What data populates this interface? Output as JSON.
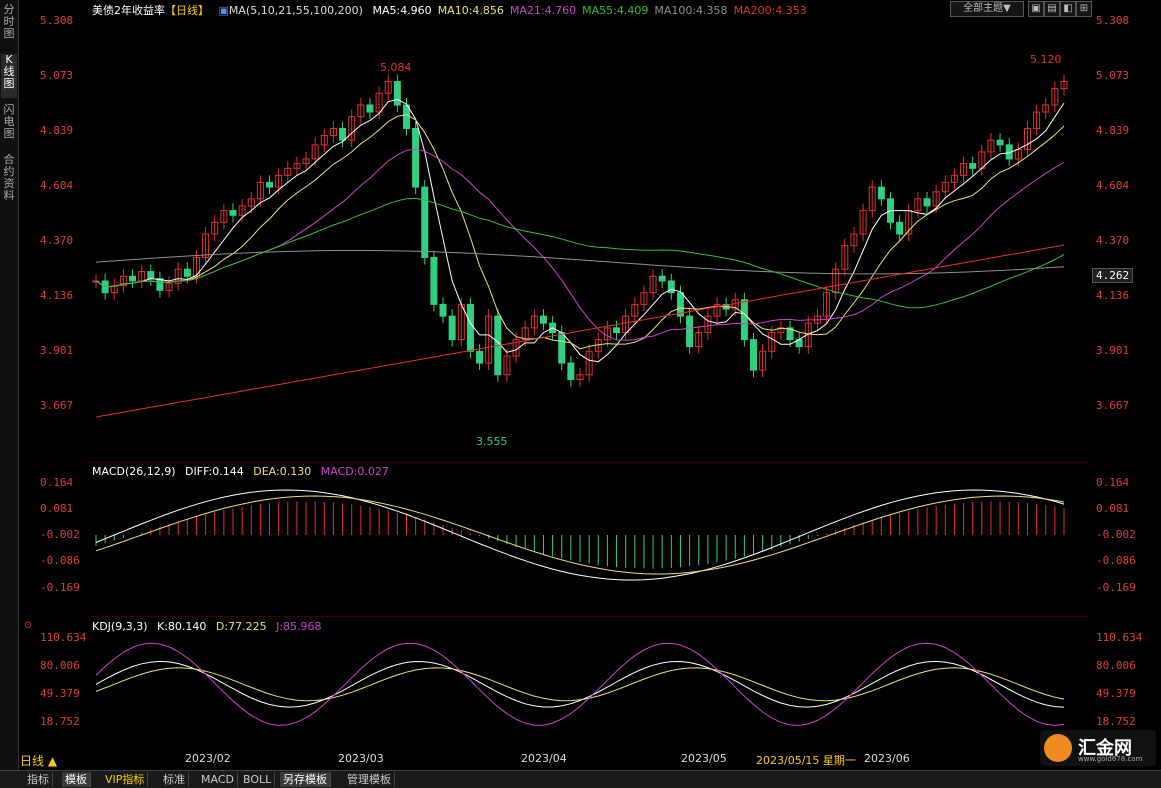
{
  "sidebar": {
    "tabs": [
      "分时图",
      "K线图",
      "闪电图",
      "合约资料"
    ]
  },
  "main_legend": {
    "title": "美债2年收益率",
    "period_tag": "【日线】",
    "ma_params": "MA(5,10,21,55,100,200)",
    "items": [
      {
        "text": "MA5:4.960",
        "color": "#ffffff"
      },
      {
        "text": "MA10:4.856",
        "color": "#f0e070"
      },
      {
        "text": "MA21:4.760",
        "color": "#d040d0"
      },
      {
        "text": "MA55:4.409",
        "color": "#30c030"
      },
      {
        "text": "MA100:4.358",
        "color": "#909090"
      },
      {
        "text": "MA200:4.353",
        "color": "#e03030"
      }
    ]
  },
  "toolbar": {
    "theme_label": "全部主题▼",
    "btn1": "▣",
    "btn2": "▤",
    "btn3": "◧",
    "btn4": "⊞"
  },
  "price_axis": {
    "ticks": [
      "5.308",
      "5.073",
      "4.839",
      "4.604",
      "4.370",
      "4.136",
      "3.901",
      "3.667"
    ],
    "current_price": "4.262",
    "high_label": "5.084",
    "high_label2": "5.120",
    "low_label": "3.555"
  },
  "macd": {
    "legend_name": "MACD(26,12,9)",
    "diff": "DIFF:0.144",
    "dea": "DEA:0.130",
    "macd": "MACD:0.027",
    "ticks": [
      "0.164",
      "0.081",
      "-0.002",
      "-0.086",
      "-0.169"
    ]
  },
  "kdj": {
    "legend_name": "KDJ(9,3,3)",
    "k": "K:80.140",
    "d": "D:77.225",
    "j": "J:85.968",
    "ticks": [
      "110.634",
      "80.006",
      "49.379",
      "18.752"
    ]
  },
  "dates": {
    "day_button": "日线 ▲",
    "labels": [
      "2023/02",
      "2023/03",
      "2023/04",
      "2023/05",
      "2023/05/15 星期一",
      "2023/06"
    ]
  },
  "bottom_tabs": [
    "指标",
    "模板",
    "VIP指标",
    "标准",
    "MACD",
    "BOLL",
    "另存模板",
    "管理模板"
  ],
  "logo": {
    "text": "汇金网",
    "url": "www.gold678.com"
  },
  "colors": {
    "up": "#e03030",
    "down": "#30d080",
    "axis": "#e03c3c"
  }
}
